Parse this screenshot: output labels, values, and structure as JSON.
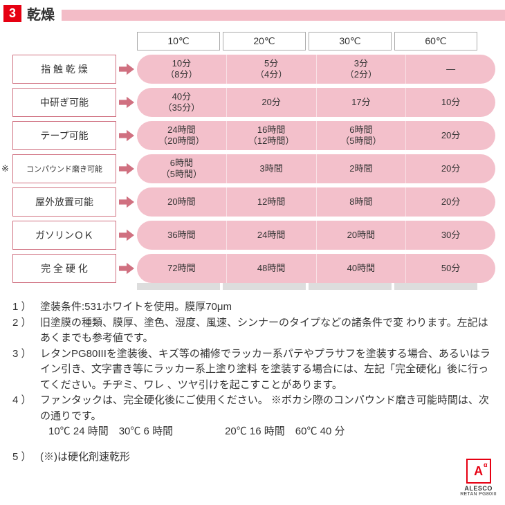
{
  "header": {
    "section_number": "3",
    "title": "乾燥",
    "badge_bg": "#e60012",
    "badge_color": "#ffffff",
    "bar_color": "#f3bcc7"
  },
  "table": {
    "columns": [
      "10℃",
      "20℃",
      "30℃",
      "60℃"
    ],
    "pill_bg": "#f3c0cb",
    "label_border": "#d07080",
    "col_border": "#aaaaaa",
    "spacer_bg": "#dddddd",
    "rows": [
      {
        "label": "指 触 乾 燥",
        "cells": [
          {
            "t": "10分",
            "s": "（8分）"
          },
          {
            "t": "5分",
            "s": "（4分）"
          },
          {
            "t": "3分",
            "s": "（2分）"
          },
          {
            "t": "—"
          }
        ]
      },
      {
        "label": "中研ぎ可能",
        "cells": [
          {
            "t": "40分",
            "s": "（35分）"
          },
          {
            "t": "20分"
          },
          {
            "t": "17分"
          },
          {
            "t": "10分"
          }
        ]
      },
      {
        "label": "テープ可能",
        "cells": [
          {
            "t": "24時間",
            "s": "（20時間）"
          },
          {
            "t": "16時間",
            "s": "（12時間）"
          },
          {
            "t": "6時間",
            "s": "（5時間）"
          },
          {
            "t": "20分"
          }
        ]
      },
      {
        "label": "コンパウンド磨き可能",
        "asterisk": "※",
        "small": true,
        "cells": [
          {
            "t": "6時間",
            "s": "（5時間）"
          },
          {
            "t": "3時間"
          },
          {
            "t": "2時間"
          },
          {
            "t": "20分"
          }
        ]
      },
      {
        "label": "屋外放置可能",
        "cells": [
          {
            "t": "20時間"
          },
          {
            "t": "12時間"
          },
          {
            "t": "8時間"
          },
          {
            "t": "20分"
          }
        ]
      },
      {
        "label": "ガソリンＯＫ",
        "cells": [
          {
            "t": "36時間"
          },
          {
            "t": "24時間"
          },
          {
            "t": "20時間"
          },
          {
            "t": "30分"
          }
        ]
      },
      {
        "label": "完 全 硬 化",
        "cells": [
          {
            "t": "72時間"
          },
          {
            "t": "48時間"
          },
          {
            "t": "40時間"
          },
          {
            "t": "50分"
          }
        ]
      }
    ]
  },
  "notes": [
    {
      "num": "1 ）",
      "text": "塗装条件:531ホワイトを使用。膜厚70μm"
    },
    {
      "num": "2 ）",
      "text": "旧塗膜の種類、膜厚、塗色、湿度、風速、シンナーのタイプなどの諸条件で変 わります。左記はあくまでも参考値です。"
    },
    {
      "num": "3 ）",
      "text": "レタンPG80IIIを塗装後、キズ等の補修でラッカー系パテやプラサフを塗装する場合、あるいはライン引き、文字書き等にラッカー系上塗り塗料 を塗装する場合には、左記「完全硬化」後に行ってください。チヂミ、ワレ 、ツヤ引けを起こすことがあります。"
    },
    {
      "num": "4 ）",
      "text": "ファンタックは、完全硬化後にご使用ください。 ※ボカシ際のコンパウンド磨き可能時間は、次の通りです。"
    }
  ],
  "note4_sub": "10℃ 24 時間　30℃ 6 時間　　　　　20℃ 16 時間　60℃ 40 分",
  "note5": {
    "num": "5 ）",
    "text": "(※)は硬化剤速乾形"
  },
  "logo": {
    "mark": "A",
    "sup": "α",
    "brand": "ALESCO",
    "product": "RETAN PG80III"
  }
}
